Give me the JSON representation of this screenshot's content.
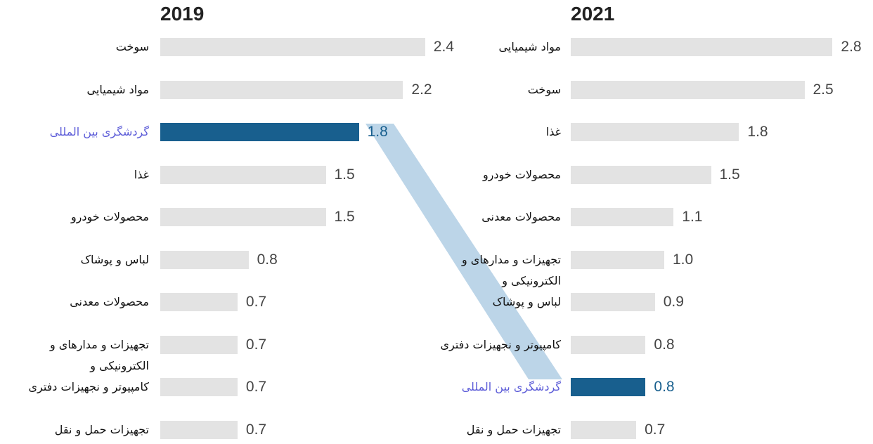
{
  "chart_data": [
    {
      "type": "bar",
      "title": "2019",
      "categories": [
        "سوخت",
        "مواد شیمیایی",
        "گردشگری بین المللی",
        "غذا",
        "محصولات خودرو",
        "لباس و پوشاک",
        "محصولات معدنی",
        "تجهیزات و مدارهای و الکترونیکی و",
        "کامپیوتر و نجهیزات دفتری",
        "تجهیزات حمل و نقل"
      ],
      "values": [
        2.4,
        2.2,
        1.8,
        1.5,
        1.5,
        0.8,
        0.7,
        0.7,
        0.7,
        0.7
      ],
      "colors": [
        "#e3e3e3",
        "#e3e3e3",
        "#185f8e",
        "#e3e3e3",
        "#e3e3e3",
        "#e3e3e3",
        "#e3e3e3",
        "#e3e3e3",
        "#e3e3e3",
        "#e3e3e3"
      ]
    },
    {
      "type": "bar",
      "title": "2021",
      "categories": [
        "مواد شیمیایی",
        "سوخت",
        "غذا",
        "محصولات خودرو",
        "محصولات معدنی",
        "تجهیزات و مدارهای و الکترونیکی و",
        "لباس و پوشاک",
        "کامپیوتر و نجهیزات دفتری",
        "گردشگری بین المللی",
        "تجهیزات حمل و نقل"
      ],
      "values": [
        2.8,
        2.5,
        1.8,
        1.5,
        1.1,
        1.0,
        0.9,
        0.8,
        0.8,
        0.7
      ],
      "value_labels": [
        "2.8",
        "2.5",
        "1.8",
        "1.5",
        "1.1",
        "1.0",
        "0.9",
        "0.8",
        "0.8",
        "0.7"
      ],
      "colors": [
        "#e3e3e3",
        "#e3e3e3",
        "#e3e3e3",
        "#e3e3e3",
        "#e3e3e3",
        "#e3e3e3",
        "#e3e3e3",
        "#e3e3e3",
        "#185f8e",
        "#e3e3e3"
      ]
    }
  ]
}
